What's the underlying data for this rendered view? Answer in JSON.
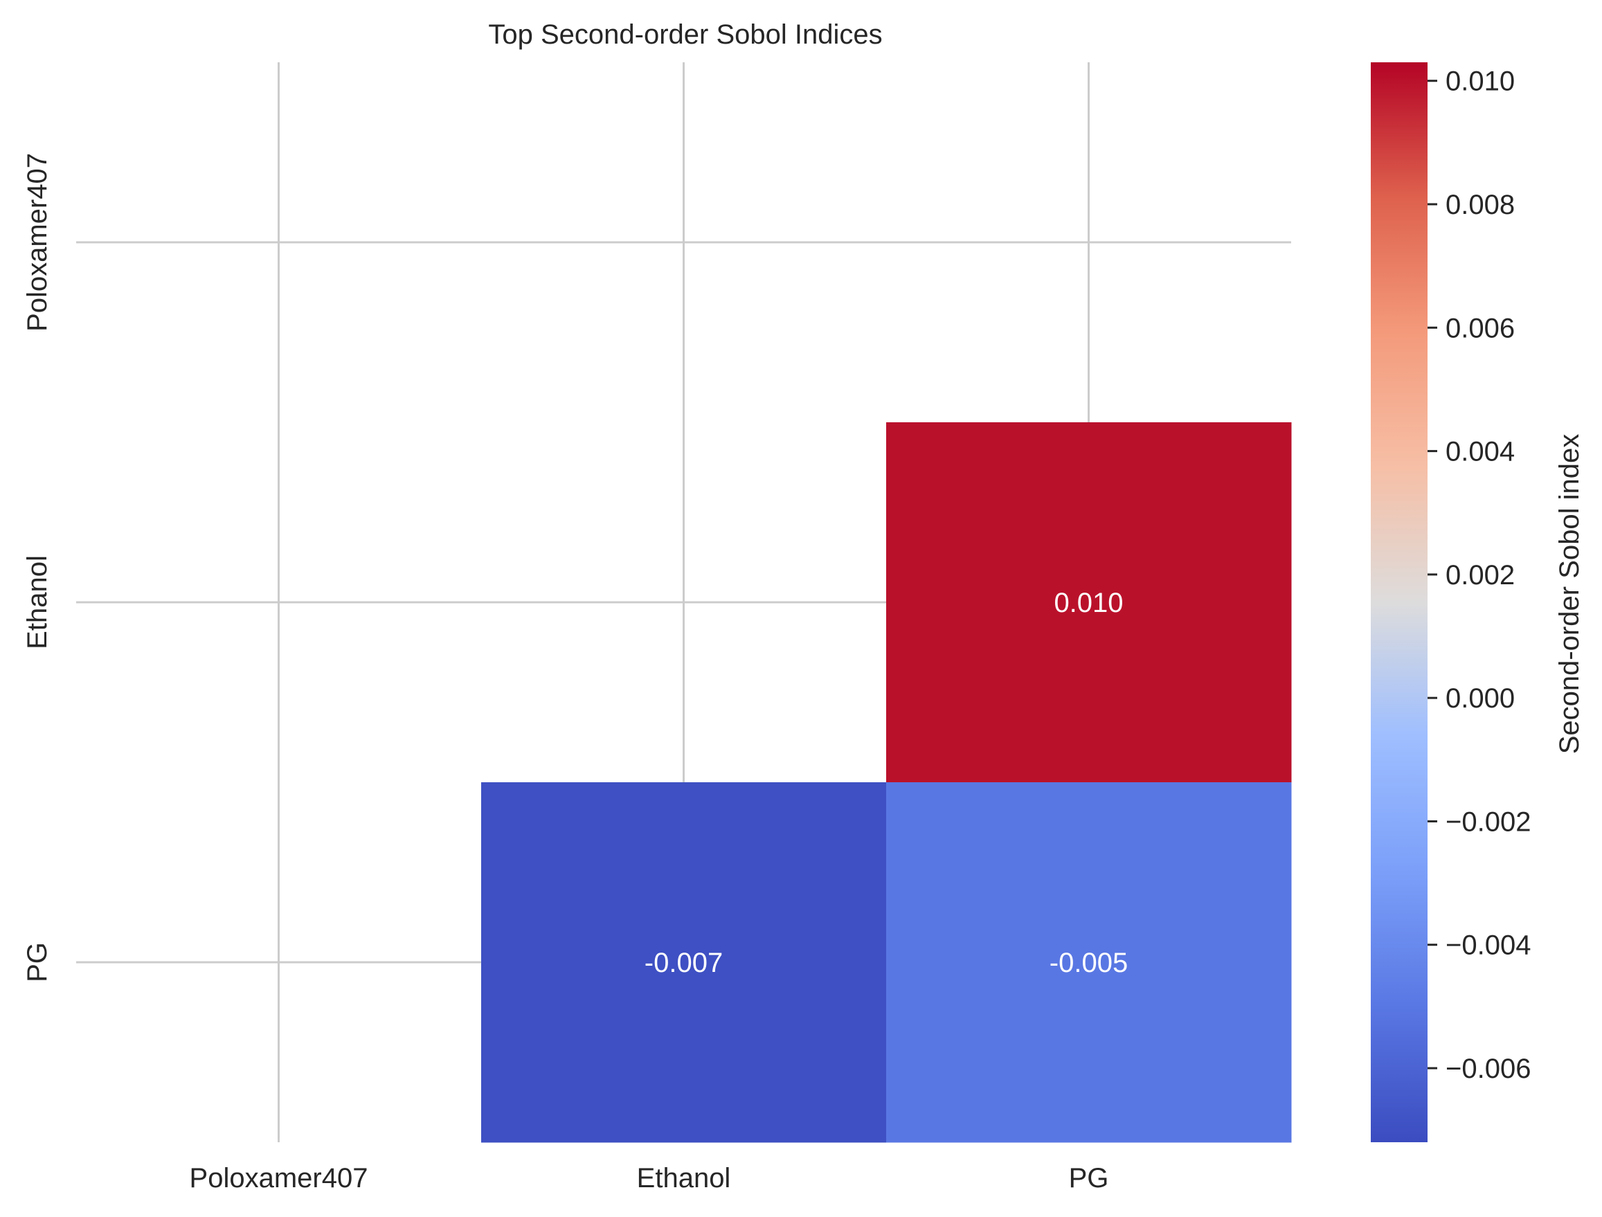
{
  "chart_data": {
    "type": "heatmap",
    "title": "Top Second-order Sobol Indices",
    "x_categories": [
      "Poloxamer407",
      "Ethanol",
      "PG"
    ],
    "y_categories": [
      "Poloxamer407",
      "Ethanol",
      "PG"
    ],
    "cells": [
      {
        "row": "Ethanol",
        "col": "PG",
        "value": 0.01,
        "label": "0.010"
      },
      {
        "row": "PG",
        "col": "Ethanol",
        "value": -0.007,
        "label": "-0.007"
      },
      {
        "row": "PG",
        "col": "PG",
        "value": -0.005,
        "label": "-0.005"
      }
    ],
    "colorbar": {
      "label": "Second-order Sobol index",
      "colormap": "coolwarm",
      "vmin": -0.0072,
      "vmax": 0.0103,
      "ticks": [
        0.01,
        0.008,
        0.006,
        0.004,
        0.002,
        0.0,
        -0.002,
        -0.004,
        -0.006
      ],
      "tick_labels": [
        "0.010",
        "0.008",
        "0.006",
        "0.004",
        "0.002",
        "0.000",
        "−0.002",
        "−0.004",
        "−0.006"
      ]
    },
    "grid": true
  }
}
